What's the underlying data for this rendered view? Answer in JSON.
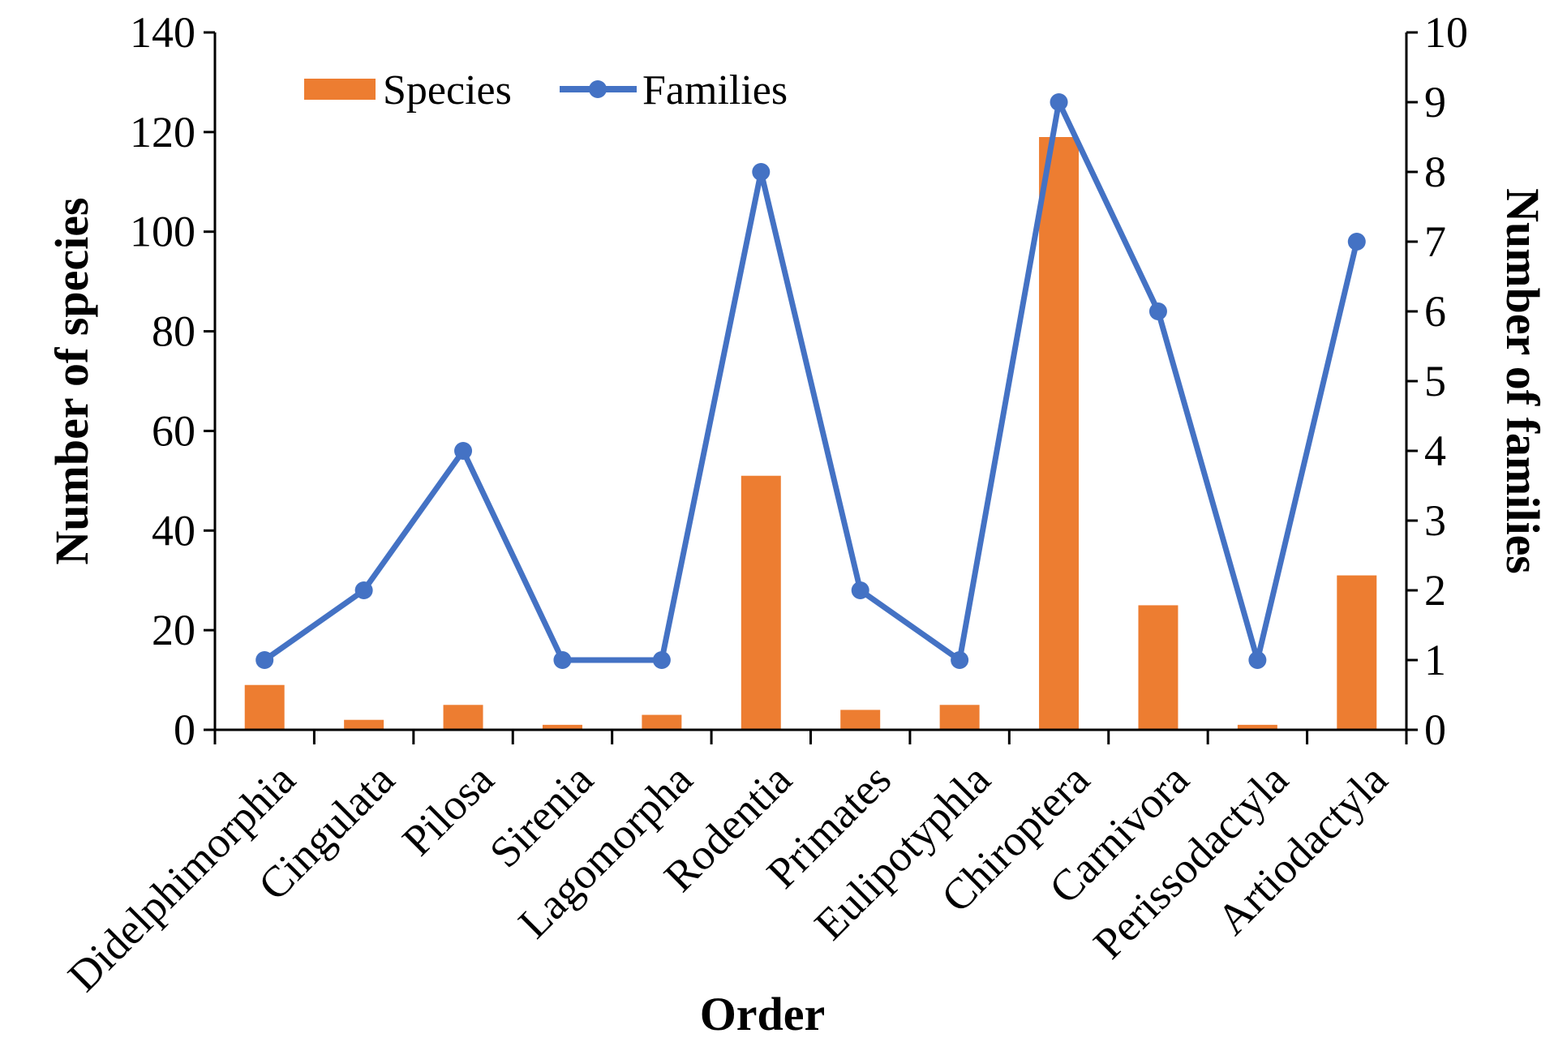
{
  "chart_data": {
    "type": "bar",
    "categories": [
      "Didelphimorphia",
      "Cingulata",
      "Pilosa",
      "Sirenia",
      "Lagomorpha",
      "Rodentia",
      "Primates",
      "Eulipotyphla",
      "Chiroptera",
      "Carnivora",
      "Perissodactyla",
      "Artiodactyla"
    ],
    "series": [
      {
        "name": "Species",
        "type": "bar",
        "axis": "left",
        "color": "#ED7D31",
        "values": [
          9,
          2,
          5,
          1,
          3,
          51,
          4,
          5,
          119,
          25,
          1,
          31
        ]
      },
      {
        "name": "Families",
        "type": "line",
        "axis": "right",
        "color": "#4472C4",
        "values": [
          1,
          2,
          4,
          1,
          1,
          8,
          2,
          1,
          9,
          6,
          1,
          7
        ]
      }
    ],
    "xlabel": "Order",
    "ylabel": "Number of species",
    "y2label": "Number of families",
    "ylim": [
      0,
      140
    ],
    "y2lim": [
      0,
      10
    ],
    "yticks": [
      "0",
      "20",
      "40",
      "60",
      "80",
      "100",
      "120",
      "140"
    ],
    "y2ticks": [
      "0",
      "1",
      "2",
      "3",
      "4",
      "5",
      "6",
      "7",
      "8",
      "9",
      "10"
    ],
    "legend": "top-left",
    "grid": false
  }
}
